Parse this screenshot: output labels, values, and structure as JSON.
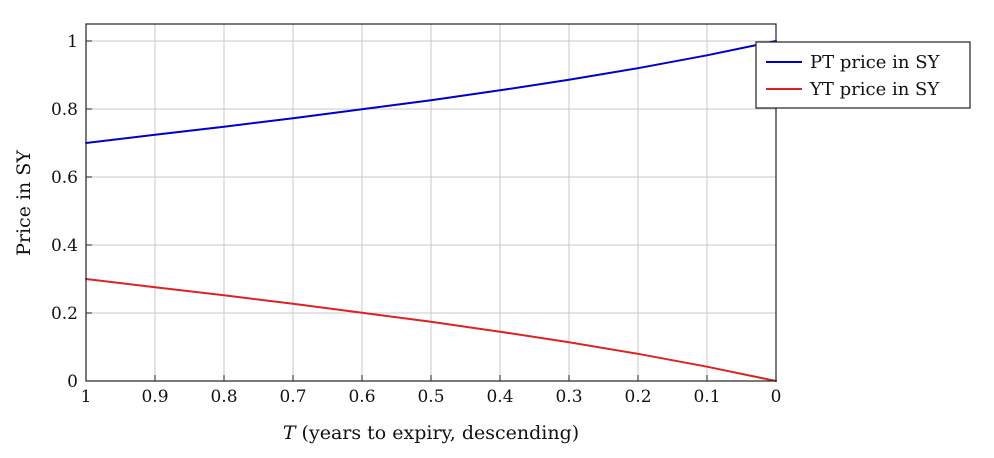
{
  "chart_data": {
    "type": "line",
    "title": "",
    "xlabel_italic": "T",
    "xlabel_rest": " (years to expiry, descending)",
    "ylabel": "Price in SY",
    "xlim": [
      1,
      0
    ],
    "ylim": [
      0,
      1.05
    ],
    "x_ticks": [
      1,
      0.9,
      0.8,
      0.7,
      0.6,
      0.5,
      0.4,
      0.3,
      0.2,
      0.1,
      0
    ],
    "x_tick_labels": [
      "1",
      "0.9",
      "0.8",
      "0.7",
      "0.6",
      "0.5",
      "0.4",
      "0.3",
      "0.2",
      "0.1",
      "0"
    ],
    "y_ticks": [
      0,
      0.2,
      0.4,
      0.6,
      0.8,
      1
    ],
    "y_tick_labels": [
      "0",
      "0.2",
      "0.4",
      "0.6",
      "0.8",
      "1"
    ],
    "grid": true,
    "legend_position": "top-right (outside)",
    "x": [
      1,
      0.9,
      0.8,
      0.7,
      0.6,
      0.5,
      0.4,
      0.3,
      0.2,
      0.1,
      0
    ],
    "series": [
      {
        "name": "PT price in SY",
        "color": "#0000cc",
        "values": [
          0.7,
          0.724,
          0.748,
          0.773,
          0.799,
          0.826,
          0.855,
          0.886,
          0.92,
          0.958,
          1.0
        ]
      },
      {
        "name": "YT price in SY",
        "color": "#dd2222",
        "values": [
          0.3,
          0.276,
          0.252,
          0.227,
          0.201,
          0.174,
          0.145,
          0.114,
          0.08,
          0.042,
          0.0
        ]
      }
    ]
  }
}
